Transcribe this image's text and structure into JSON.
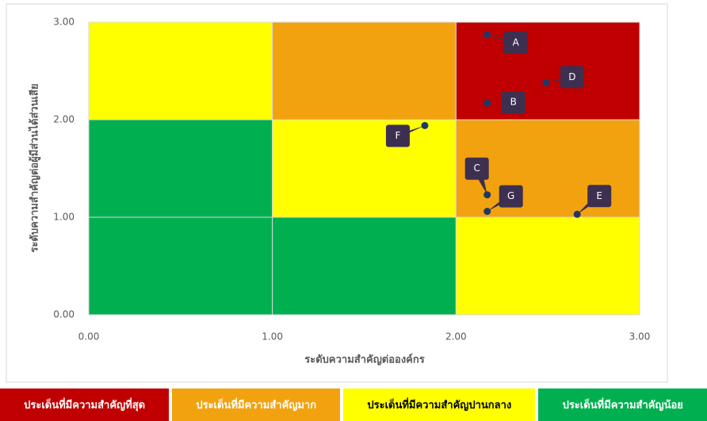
{
  "chart_data": {
    "type": "scatter",
    "xlabel": "ระดับความสำคัญต่อองค์กร",
    "ylabel": "ระดับความสำคัญต่อผู้มีส่วนได้ส่วนเสีย",
    "xlim": [
      0,
      3
    ],
    "ylim": [
      0,
      3
    ],
    "xticks": [
      {
        "value": 0,
        "label": "0.00"
      },
      {
        "value": 1,
        "label": "1.00"
      },
      {
        "value": 2,
        "label": "2.00"
      },
      {
        "value": 3,
        "label": "3.00"
      }
    ],
    "yticks": [
      {
        "value": 0,
        "label": "0.00"
      },
      {
        "value": 1,
        "label": "1.00"
      },
      {
        "value": 2,
        "label": "2.00"
      },
      {
        "value": 3,
        "label": "3.00"
      }
    ],
    "color": "#1f3864",
    "label_color": "#3d2f50",
    "labels": [
      "A",
      "B",
      "D",
      "F",
      "C",
      "G",
      "E"
    ],
    "x": [
      2.17,
      2.17,
      2.49,
      1.83,
      2.17,
      2.17,
      2.66
    ],
    "values": [
      2.87,
      2.17,
      2.38,
      1.94,
      1.23,
      1.06,
      1.03
    ],
    "legend": [
      {
        "name": "ประเด็นที่มีความสำคัญที่สุด",
        "color": "#c00000",
        "text_color": "#ffffff"
      },
      {
        "name": "ประเด็นที่มีความสำคัญมาก",
        "color": "#f2a20f",
        "text_color": "#ffffff"
      },
      {
        "name": "ประเด็นที่มีความสำคัญปานกลาง",
        "color": "#ffff00",
        "text_color": "#000000"
      },
      {
        "name": "ประเด็นที่มีความสำคัญน้อย",
        "color": "#00b050",
        "text_color": "#ffffff"
      }
    ],
    "regions": [
      {
        "x": [
          0,
          1
        ],
        "y": [
          2,
          3
        ],
        "level": 2
      },
      {
        "x": [
          1,
          2
        ],
        "y": [
          2,
          3
        ],
        "level": 1
      },
      {
        "x": [
          2,
          3
        ],
        "y": [
          2,
          3
        ],
        "level": 0
      },
      {
        "x": [
          0,
          1
        ],
        "y": [
          1,
          2
        ],
        "level": 3
      },
      {
        "x": [
          1,
          2
        ],
        "y": [
          1,
          2
        ],
        "level": 2
      },
      {
        "x": [
          2,
          3
        ],
        "y": [
          1,
          2
        ],
        "level": 1
      },
      {
        "x": [
          0,
          1
        ],
        "y": [
          0,
          1
        ],
        "level": 3
      },
      {
        "x": [
          1,
          2
        ],
        "y": [
          0,
          1
        ],
        "level": 3
      },
      {
        "x": [
          2,
          3
        ],
        "y": [
          0,
          1
        ],
        "level": 2
      }
    ]
  }
}
